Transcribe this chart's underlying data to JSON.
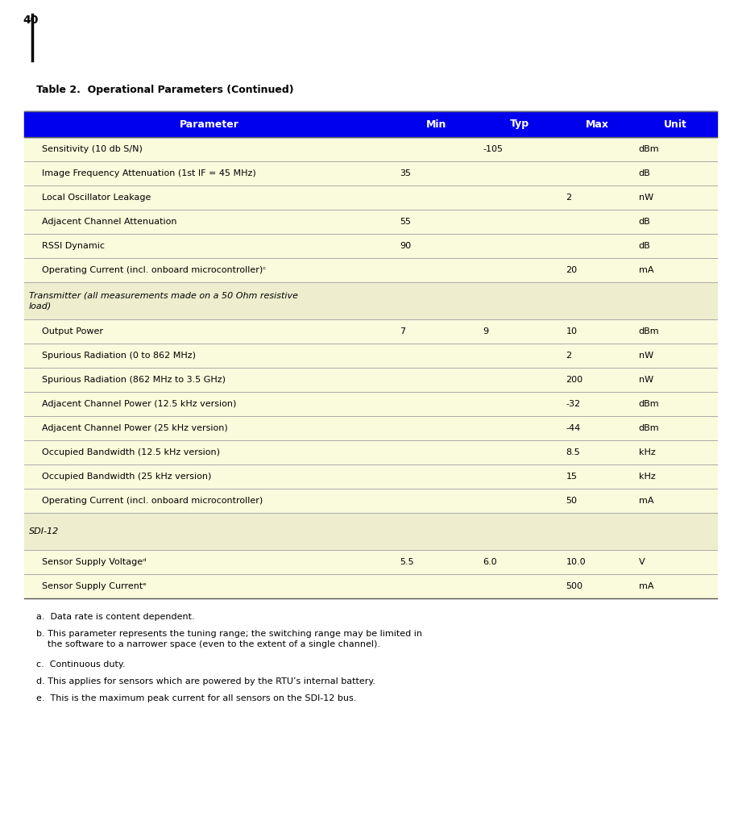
{
  "page_number": "40",
  "title": "Table 2.  Operational Parameters (Continued)",
  "header": [
    "Parameter",
    "Min",
    "Typ",
    "Max",
    "Unit"
  ],
  "header_bg": "#0000EE",
  "header_text_color": "#FFFFFF",
  "row_bg_light": "#FAFADC",
  "section_bg": "#EEEECE",
  "line_color": "#AAAAAA",
  "rows": [
    {
      "type": "data",
      "param": "Sensitivity (10 db S/N)",
      "min": "",
      "typ": "-105",
      "max": "",
      "unit": "dBm"
    },
    {
      "type": "data",
      "param": "Image Frequency Attenuation (1st IF = 45 MHz)",
      "min": "35",
      "typ": "",
      "max": "",
      "unit": "dB"
    },
    {
      "type": "data",
      "param": "Local Oscillator Leakage",
      "min": "",
      "typ": "",
      "max": "2",
      "unit": "nW"
    },
    {
      "type": "data",
      "param": "Adjacent Channel Attenuation",
      "min": "55",
      "typ": "",
      "max": "",
      "unit": "dB"
    },
    {
      "type": "data",
      "param": "RSSI Dynamic",
      "min": "90",
      "typ": "",
      "max": "",
      "unit": "dB"
    },
    {
      "type": "data",
      "param": "Operating Current (incl. onboard microcontroller)ᶜ",
      "min": "",
      "typ": "",
      "max": "20",
      "unit": "mA"
    },
    {
      "type": "section",
      "param": "Transmitter (all measurements made on a 50 Ohm resistive\nload)",
      "min": "",
      "typ": "",
      "max": "",
      "unit": ""
    },
    {
      "type": "data",
      "param": "Output Power",
      "min": "7",
      "typ": "9",
      "max": "10",
      "unit": "dBm"
    },
    {
      "type": "data",
      "param": "Spurious Radiation (0 to 862 MHz)",
      "min": "",
      "typ": "",
      "max": "2",
      "unit": "nW"
    },
    {
      "type": "data",
      "param": "Spurious Radiation (862 MHz to 3.5 GHz)",
      "min": "",
      "typ": "",
      "max": "200",
      "unit": "nW"
    },
    {
      "type": "data",
      "param": "Adjacent Channel Power (12.5 kHz version)",
      "min": "",
      "typ": "",
      "max": "-32",
      "unit": "dBm"
    },
    {
      "type": "data",
      "param": "Adjacent Channel Power (25 kHz version)",
      "min": "",
      "typ": "",
      "max": "-44",
      "unit": "dBm"
    },
    {
      "type": "data",
      "param": "Occupied Bandwidth (12.5 kHz version)",
      "min": "",
      "typ": "",
      "max": "8.5",
      "unit": "kHz"
    },
    {
      "type": "data",
      "param": "Occupied Bandwidth (25 kHz version)",
      "min": "",
      "typ": "",
      "max": "15",
      "unit": "kHz"
    },
    {
      "type": "data",
      "param": "Operating Current (incl. onboard microcontroller)",
      "min": "",
      "typ": "",
      "max": "50",
      "unit": "mA"
    },
    {
      "type": "section",
      "param": "SDI-12",
      "min": "",
      "typ": "",
      "max": "",
      "unit": ""
    },
    {
      "type": "data",
      "param": "Sensor Supply Voltageᵈ",
      "min": "5.5",
      "typ": "6.0",
      "max": "10.0",
      "unit": "V"
    },
    {
      "type": "data",
      "param": "Sensor Supply Currentᵉ",
      "min": "",
      "typ": "",
      "max": "500",
      "unit": "mA"
    }
  ],
  "footnotes": [
    "a.  Data rate is content dependent.",
    "b. This parameter represents the tuning range; the switching range may be limited in\n    the software to a narrower space (even to the extent of a single channel).",
    "c.  Continuous duty.",
    "d. This applies for sensors which are powered by the RTU’s internal battery.",
    "e.  This is the maximum peak current for all sensors on the SDI-12 bus."
  ],
  "table_font_size": 8.0,
  "footnote_font_size": 8.0,
  "title_font_size": 9.0
}
